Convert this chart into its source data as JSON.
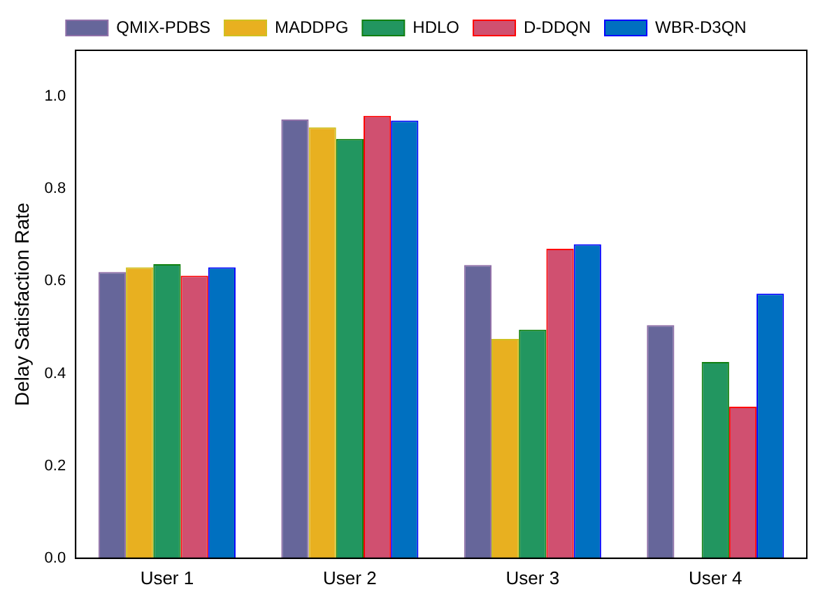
{
  "chart_data": {
    "type": "bar",
    "ylabel": "Delay Satisfaction Rate",
    "categories": [
      "User 1",
      "User 2",
      "User 3",
      "User 4"
    ],
    "series": [
      {
        "name": "QMIX-PDBS",
        "color": "#66669a",
        "values": [
          0.62,
          0.95,
          0.635,
          0.505
        ]
      },
      {
        "name": "MADDPG",
        "color": "#e8b020",
        "values": [
          0.63,
          0.933,
          0.475,
          0
        ]
      },
      {
        "name": "HDLO",
        "color": "#229660",
        "values": [
          0.637,
          0.908,
          0.495,
          0.425
        ]
      },
      {
        "name": "D-DDQN",
        "color": "#d05070",
        "values": [
          0.612,
          0.958,
          0.67,
          0.328
        ]
      },
      {
        "name": "WBR-D3QN",
        "color": "#0070c0",
        "values": [
          0.63,
          0.948,
          0.68,
          0.573
        ]
      }
    ],
    "ylim": [
      0,
      1.1
    ],
    "yticks": [
      {
        "value": 0,
        "label": "0.0"
      },
      {
        "value": 0.2,
        "label": "0.2"
      },
      {
        "value": 0.4,
        "label": "0.4"
      },
      {
        "value": 0.6,
        "label": "0.6"
      },
      {
        "value": 0.8,
        "label": "0.8"
      },
      {
        "value": 1,
        "label": "1.0"
      }
    ],
    "grid": false,
    "legend": "top"
  }
}
